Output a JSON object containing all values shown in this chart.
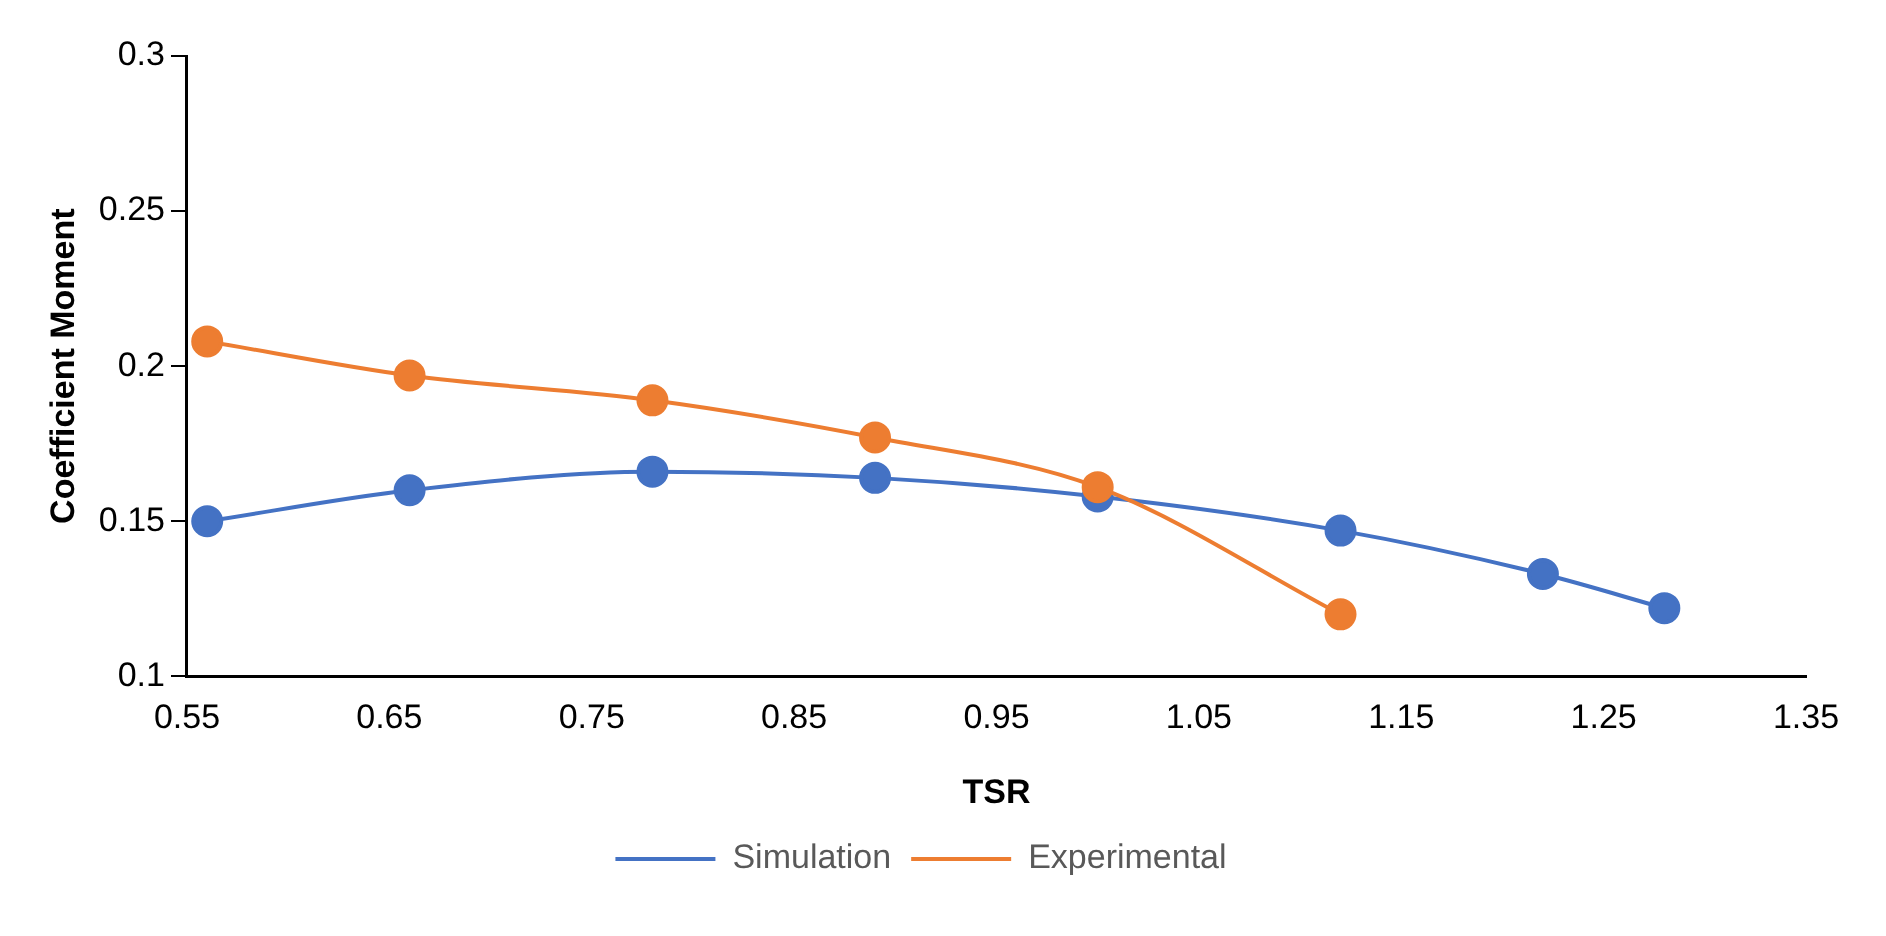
{
  "chart_data": {
    "type": "line",
    "xlabel": "TSR",
    "ylabel": "Coefficient Moment",
    "xlim": [
      0.55,
      1.35
    ],
    "xticks": [
      0.55,
      0.65,
      0.75,
      0.85,
      0.95,
      1.05,
      1.15,
      1.25,
      1.35
    ],
    "ylim": [
      0.1,
      0.3
    ],
    "yticks": [
      0.1,
      0.15,
      0.2,
      0.25,
      0.3
    ],
    "grid": false,
    "legend": "bottom",
    "marker": "circle",
    "line_style": "solid",
    "series": [
      {
        "name": "Simulation",
        "color": "#4472c4",
        "x": [
          0.56,
          0.66,
          0.78,
          0.89,
          1.0,
          1.12,
          1.22,
          1.28
        ],
        "values": [
          0.15,
          0.16,
          0.166,
          0.164,
          0.158,
          0.147,
          0.133,
          0.122
        ]
      },
      {
        "name": "Experimental",
        "color": "#ed7d31",
        "x": [
          0.56,
          0.66,
          0.78,
          0.89,
          1.0,
          1.12
        ],
        "values": [
          0.208,
          0.197,
          0.189,
          0.177,
          0.161,
          0.12
        ]
      }
    ]
  }
}
